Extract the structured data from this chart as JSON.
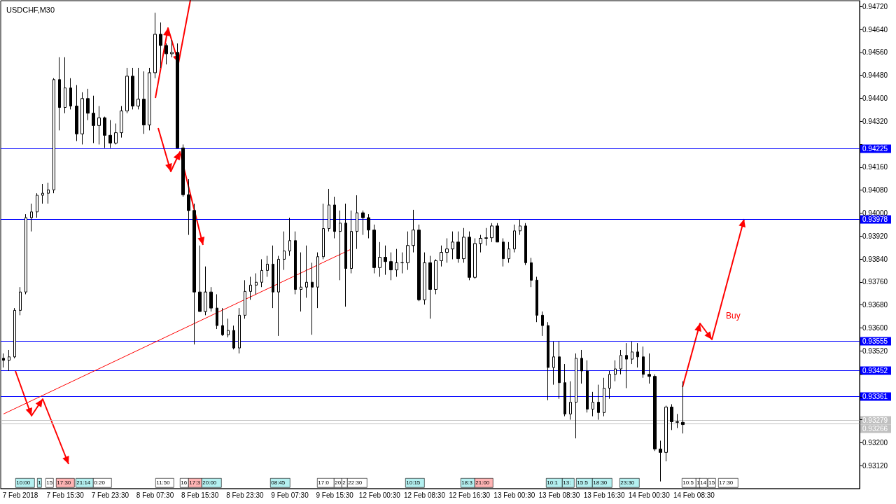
{
  "chart_data": {
    "type": "candlestick",
    "title": "USDCHF,M30",
    "categories": [
      null,
      null,
      null,
      "7 Feb 2018",
      null,
      null,
      null,
      null,
      null,
      null,
      null,
      "7 Feb 15:30",
      null,
      null,
      null,
      null,
      null,
      null,
      null,
      "7 Feb 23:30",
      null,
      null,
      null,
      null,
      null,
      null,
      null,
      "8 Feb 07:30",
      null,
      null,
      null,
      null,
      null,
      null,
      null,
      "8 Feb 15:30",
      null,
      null,
      null,
      null,
      null,
      null,
      null,
      "8 Feb 23:30",
      null,
      null,
      null,
      null,
      null,
      null,
      null,
      "9 Feb 07:30",
      null,
      null,
      null,
      null,
      null,
      null,
      null,
      "9 Feb 15:30",
      null,
      null,
      null,
      null,
      null,
      null,
      null,
      "12 Feb 00:30",
      null,
      null,
      null,
      null,
      null,
      null,
      null,
      "12 Feb 08:30",
      null,
      null,
      null,
      null,
      null,
      null,
      null,
      "12 Feb 16:30",
      null,
      null,
      null,
      null,
      null,
      null,
      null,
      "13 Feb 00:30",
      null,
      null,
      null,
      null,
      null,
      null,
      null,
      "13 Feb 08:30",
      null,
      null,
      null,
      null,
      null,
      null,
      null,
      "13 Feb 16:30",
      null,
      null,
      null,
      null,
      null,
      null,
      null,
      "14 Feb 00:30",
      null,
      null,
      null,
      null,
      null,
      null,
      null,
      "14 Feb 08:30",
      null,
      null,
      null,
      null,
      null,
      null,
      null,
      null,
      null,
      null,
      null,
      null,
      null,
      null,
      null,
      null,
      null,
      null,
      null,
      null,
      null,
      null,
      null,
      null,
      null,
      null,
      null,
      null,
      null
    ],
    "series": [
      {
        "color": "#000000",
        "ohlc": [
          [
            0.93494,
            0.93511,
            0.93462,
            0.93487
          ],
          [
            0.93487,
            0.93523,
            0.9345,
            0.93499
          ],
          [
            0.93499,
            0.93669,
            0.93494,
            0.93661
          ],
          [
            0.93661,
            0.93742,
            0.93644,
            0.93725
          ],
          [
            0.93725,
            0.93996,
            0.93717,
            0.93984
          ],
          [
            0.93984,
            0.94033,
            0.93936,
            0.94004
          ],
          [
            0.94004,
            0.94069,
            0.93984,
            0.94062
          ],
          [
            0.94062,
            0.94101,
            0.94033,
            0.94069
          ],
          [
            0.94069,
            0.94106,
            0.94033,
            0.94081
          ],
          [
            0.94081,
            0.9447,
            0.94069,
            0.94465
          ],
          [
            0.94465,
            0.94543,
            0.94288,
            0.94368
          ],
          [
            0.94368,
            0.94543,
            0.94348,
            0.94436
          ],
          [
            0.94436,
            0.9447,
            0.94361,
            0.94373
          ],
          [
            0.94373,
            0.94446,
            0.94251,
            0.94276
          ],
          [
            0.94276,
            0.94421,
            0.94239,
            0.94399
          ],
          [
            0.94399,
            0.94433,
            0.94324,
            0.94348
          ],
          [
            0.94348,
            0.94409,
            0.94244,
            0.94305
          ],
          [
            0.94305,
            0.94373,
            0.94239,
            0.94332
          ],
          [
            0.94332,
            0.94336,
            0.94227,
            0.94271
          ],
          [
            0.94271,
            0.94324,
            0.94227,
            0.94244
          ],
          [
            0.94244,
            0.94312,
            0.94239,
            0.9428
          ],
          [
            0.9428,
            0.94373,
            0.94263,
            0.94356
          ],
          [
            0.94356,
            0.94506,
            0.94348,
            0.94477
          ],
          [
            0.94477,
            0.94506,
            0.94361,
            0.94373
          ],
          [
            0.94373,
            0.94506,
            0.94361,
            0.94397
          ],
          [
            0.94397,
            0.94494,
            0.94276,
            0.94307
          ],
          [
            0.94307,
            0.94506,
            0.94288,
            0.94489
          ],
          [
            0.94489,
            0.94698,
            0.9447,
            0.94623
          ],
          [
            0.94623,
            0.94664,
            0.94506,
            0.94584
          ],
          [
            0.94584,
            0.94591,
            0.94518,
            0.94555
          ],
          [
            0.94555,
            0.94603,
            0.94543,
            0.9456
          ],
          [
            0.9456,
            0.94591,
            0.94227,
            0.94227
          ],
          [
            0.94227,
            0.94239,
            0.94057,
            0.94064
          ],
          [
            0.94064,
            0.94118,
            0.93924,
            0.94009
          ],
          [
            0.94009,
            0.94033,
            0.93542,
            0.93725
          ],
          [
            0.93725,
            0.93887,
            0.93657,
            0.93657
          ],
          [
            0.93657,
            0.93814,
            0.93644,
            0.93725
          ],
          [
            0.93725,
            0.93742,
            0.93657,
            0.93669
          ],
          [
            0.93669,
            0.93717,
            0.93596,
            0.93608
          ],
          [
            0.93608,
            0.93669,
            0.93572,
            0.93576
          ],
          [
            0.93576,
            0.93632,
            0.93567,
            0.93591
          ],
          [
            0.93591,
            0.93608,
            0.93525,
            0.9353
          ],
          [
            0.9353,
            0.93669,
            0.93511,
            0.93644
          ],
          [
            0.93644,
            0.93766,
            0.93632,
            0.93727
          ],
          [
            0.93727,
            0.93778,
            0.93698,
            0.93749
          ],
          [
            0.93749,
            0.9379,
            0.93717,
            0.93759
          ],
          [
            0.93759,
            0.93839,
            0.93742,
            0.938
          ],
          [
            0.938,
            0.93851,
            0.93778,
            0.93822
          ],
          [
            0.93822,
            0.93887,
            0.93669,
            0.93725
          ],
          [
            0.93725,
            0.93851,
            0.93572,
            0.93839
          ],
          [
            0.93839,
            0.93936,
            0.93802,
            0.93868
          ],
          [
            0.93868,
            0.93984,
            0.93851,
            0.93904
          ],
          [
            0.93904,
            0.93936,
            0.93717,
            0.93734
          ],
          [
            0.93734,
            0.93863,
            0.93657,
            0.93742
          ],
          [
            0.93742,
            0.93887,
            0.93705,
            0.93759
          ],
          [
            0.93759,
            0.93827,
            0.93576,
            0.93742
          ],
          [
            0.93742,
            0.93863,
            0.93669,
            0.93848
          ],
          [
            0.93848,
            0.94033,
            0.93839,
            0.93946
          ],
          [
            0.93946,
            0.94084,
            0.93936,
            0.94028
          ],
          [
            0.94028,
            0.94057,
            0.93912,
            0.93936
          ],
          [
            0.93936,
            0.94009,
            0.93766,
            0.93965
          ],
          [
            0.93965,
            0.94033,
            0.93674,
            0.93807
          ],
          [
            0.93807,
            0.94009,
            0.9379,
            0.93936
          ],
          [
            0.93936,
            0.94062,
            0.93875,
            0.94001
          ],
          [
            0.94001,
            0.94009,
            0.93924,
            0.93984
          ],
          [
            0.93984,
            0.93996,
            0.93912,
            0.93941
          ],
          [
            0.93941,
            0.9396,
            0.9379,
            0.9381
          ],
          [
            0.9381,
            0.93899,
            0.93778,
            0.93846
          ],
          [
            0.93846,
            0.93887,
            0.93785,
            0.93831
          ],
          [
            0.93831,
            0.93863,
            0.93766,
            0.93802
          ],
          [
            0.93802,
            0.93875,
            0.93778,
            0.93827
          ],
          [
            0.93827,
            0.93863,
            0.9379,
            0.93827
          ],
          [
            0.93827,
            0.93936,
            0.93802,
            0.93887
          ],
          [
            0.93887,
            0.94011,
            0.93863,
            0.93941
          ],
          [
            0.93941,
            0.9396,
            0.93693,
            0.93698
          ],
          [
            0.93698,
            0.93863,
            0.93681,
            0.93827
          ],
          [
            0.93827,
            0.93851,
            0.93632,
            0.93734
          ],
          [
            0.93734,
            0.93839,
            0.93717,
            0.93834
          ],
          [
            0.93834,
            0.93887,
            0.93814,
            0.93863
          ],
          [
            0.93863,
            0.93912,
            0.93827,
            0.93875
          ],
          [
            0.93875,
            0.93936,
            0.93839,
            0.93899
          ],
          [
            0.93899,
            0.93936,
            0.93827,
            0.93841
          ],
          [
            0.93841,
            0.93948,
            0.93827,
            0.93916
          ],
          [
            0.93916,
            0.93936,
            0.93766,
            0.93776
          ],
          [
            0.93776,
            0.93912,
            0.93771,
            0.93894
          ],
          [
            0.93894,
            0.93924,
            0.93863,
            0.93912
          ],
          [
            0.93912,
            0.93948,
            0.93887,
            0.93914
          ],
          [
            0.93914,
            0.93965,
            0.93899,
            0.93955
          ],
          [
            0.93955,
            0.93965,
            0.93899,
            0.93899
          ],
          [
            0.93899,
            0.93912,
            0.93814,
            0.93841
          ],
          [
            0.93841,
            0.93899,
            0.93827,
            0.93875
          ],
          [
            0.93875,
            0.9396,
            0.93863,
            0.93938
          ],
          [
            0.93938,
            0.93977,
            0.93924,
            0.93955
          ],
          [
            0.93955,
            0.93965,
            0.93819,
            0.93827
          ],
          [
            0.93827,
            0.93844,
            0.93742,
            0.93766
          ],
          [
            0.93766,
            0.93778,
            0.9362,
            0.93644
          ],
          [
            0.93644,
            0.93657,
            0.93572,
            0.93608
          ],
          [
            0.93608,
            0.9362,
            0.93348,
            0.93462
          ],
          [
            0.93462,
            0.93552,
            0.93402,
            0.93499
          ],
          [
            0.93499,
            0.93552,
            0.93353,
            0.93409
          ],
          [
            0.93409,
            0.93474,
            0.93292,
            0.933
          ],
          [
            0.933,
            0.93414,
            0.9328,
            0.93341
          ],
          [
            0.93341,
            0.93511,
            0.93215,
            0.93494
          ],
          [
            0.93494,
            0.93523,
            0.93406,
            0.9345
          ],
          [
            0.9345,
            0.93487,
            0.93305,
            0.93317
          ],
          [
            0.93317,
            0.93377,
            0.93292,
            0.93341
          ],
          [
            0.93341,
            0.93402,
            0.9328,
            0.93305
          ],
          [
            0.93305,
            0.93426,
            0.93292,
            0.9339
          ],
          [
            0.9339,
            0.9345,
            0.93353,
            0.93438
          ],
          [
            0.93438,
            0.93487,
            0.93414,
            0.93457
          ],
          [
            0.93457,
            0.93523,
            0.93438,
            0.93504
          ],
          [
            0.93504,
            0.93547,
            0.9339,
            0.93491
          ],
          [
            0.93491,
            0.93552,
            0.93474,
            0.93516
          ],
          [
            0.93516,
            0.93547,
            0.93462,
            0.93499
          ],
          [
            0.93499,
            0.93535,
            0.93426,
            0.93438
          ],
          [
            0.93438,
            0.93511,
            0.93406,
            0.93431
          ],
          [
            0.93431,
            0.93438,
            0.93171,
            0.93178
          ],
          [
            0.93178,
            0.93207,
            0.93065,
            0.93166
          ],
          [
            0.93166,
            0.93329,
            0.93135,
            0.93324
          ],
          [
            0.93324,
            0.93334,
            0.93244,
            0.93273
          ],
          [
            0.93273,
            0.933,
            0.93251,
            0.93271
          ],
          [
            0.93271,
            0.93414,
            0.93232,
            0.93263
          ],
          null,
          null,
          null,
          null,
          null,
          null,
          null,
          null,
          null,
          null,
          null,
          null,
          null,
          null,
          null,
          null,
          null,
          null,
          null,
          null,
          null,
          null,
          null,
          null,
          null,
          null,
          null,
          null,
          null,
          null,
          null
        ]
      },
      {
        "type": "line",
        "color": "#ff0000",
        "values": [
          0.933,
          null,
          null,
          null,
          null,
          null,
          null,
          null,
          null,
          null,
          null,
          null,
          null,
          null,
          null,
          null,
          null,
          null,
          null,
          null,
          null,
          null,
          null,
          null,
          null,
          null,
          null,
          null,
          null,
          null,
          null,
          null,
          null,
          null,
          null,
          null,
          null,
          null,
          null,
          null,
          null,
          null,
          null,
          null,
          null,
          null,
          null,
          null,
          null,
          null,
          null,
          null,
          null,
          null,
          null,
          null,
          null,
          null,
          null,
          null,
          null,
          null,
          0.93875,
          null,
          null,
          null,
          null,
          null,
          null,
          null,
          null,
          null,
          null,
          null,
          null,
          null,
          null,
          null,
          null,
          null,
          null,
          null,
          null,
          null,
          null,
          null,
          null,
          null,
          null,
          null,
          null,
          null,
          null,
          null,
          null,
          null,
          null,
          null,
          null,
          null,
          null,
          null,
          null,
          null,
          null,
          null,
          null,
          null,
          null,
          null,
          null,
          null,
          null,
          null,
          null,
          null,
          null,
          null,
          null,
          null,
          null,
          null,
          null,
          null,
          null,
          null,
          null,
          null,
          null,
          null,
          null,
          null,
          null,
          null,
          null,
          null,
          null,
          null,
          null,
          null,
          null,
          null,
          null,
          null,
          null,
          null,
          null,
          null,
          null,
          null,
          null,
          null,
          null
        ]
      }
    ],
    "ylim": [
      0.9304,
      0.9474
    ],
    "yticks": [
      {
        "value": 0.9312,
        "label": "0.93120"
      },
      {
        "value": 0.932,
        "label": "0.93200"
      },
      {
        "value": 0.9328,
        "label": null
      },
      {
        "value": 0.9336,
        "label": null
      },
      {
        "value": 0.9344,
        "label": null
      },
      {
        "value": 0.9352,
        "label": "0.93520"
      },
      {
        "value": 0.936,
        "label": "0.93600"
      },
      {
        "value": 0.9368,
        "label": "0.93680"
      },
      {
        "value": 0.9376,
        "label": "0.93760"
      },
      {
        "value": 0.9384,
        "label": "0.93840"
      },
      {
        "value": 0.9392,
        "label": "0.93920"
      },
      {
        "value": 0.94,
        "label": "0.94000"
      },
      {
        "value": 0.9408,
        "label": "0.94080"
      },
      {
        "value": 0.9416,
        "label": "0.94160"
      },
      {
        "value": 0.9424,
        "label": null
      },
      {
        "value": 0.9432,
        "label": "0.94320"
      },
      {
        "value": 0.944,
        "label": "0.94400"
      },
      {
        "value": 0.9448,
        "label": "0.94480"
      },
      {
        "value": 0.9456,
        "label": "0.94560"
      },
      {
        "value": 0.9464,
        "label": "0.94640"
      },
      {
        "value": 0.9472,
        "label": "0.94720"
      }
    ],
    "ref_lines": [
      {
        "axis": "y",
        "value": 0.94225,
        "label": "0.94225",
        "color": "#0000ff"
      },
      {
        "axis": "y",
        "value": 0.93978,
        "label": "0.93978",
        "color": "#0000ff"
      },
      {
        "axis": "y",
        "value": 0.93555,
        "label": "0.93555",
        "color": "#0000ff"
      },
      {
        "axis": "y",
        "value": 0.93452,
        "label": "0.93452",
        "color": "#0000ff"
      },
      {
        "axis": "y",
        "value": 0.93361,
        "label": "0.93361",
        "color": "#0000ff"
      },
      {
        "axis": "y",
        "value": 0.93279,
        "label": "0.93279",
        "color": "#c0c0c0"
      },
      {
        "axis": "y",
        "value": 0.93266,
        "label": "0.93266",
        "color": "#c0c0c0"
      }
    ],
    "annotations": [
      "Buy",
      "10:00",
      "1",
      "15",
      "17:30",
      "21:14",
      "0:20",
      "11:50",
      "16",
      "17:3",
      "20:00",
      "08:45",
      "17:0",
      "20",
      "2",
      "22:30",
      "10:15",
      "18:3",
      "21:00",
      "10:1",
      "13:",
      "15:5",
      "18:30",
      "23:30",
      "10:5",
      "1",
      "14",
      "15",
      "17:30"
    ],
    "grid": false
  }
}
